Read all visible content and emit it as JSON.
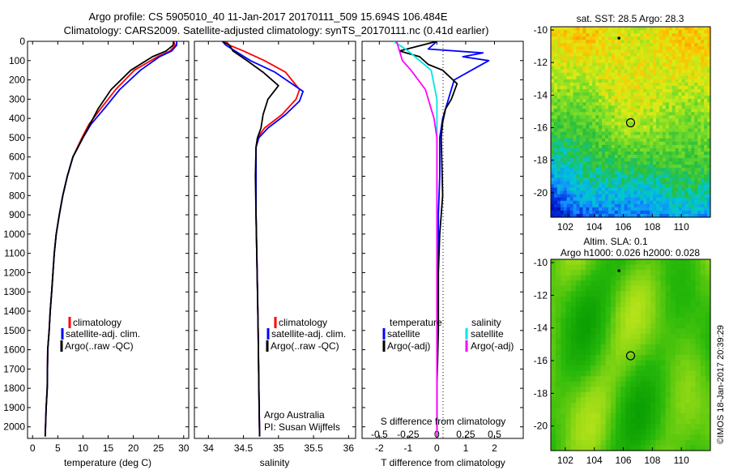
{
  "header": {
    "title_line1": "Argo profile: CS 5905010_40 11-Jan-2017 20170111_509 15.694S 106.484E",
    "title_line2": "Climatology: CARS2009. Satellite-adjusted climatology: synTS_20170111.nc (0.41d earlier)"
  },
  "credits": {
    "argo_line1": "Argo Australia",
    "argo_line2": "PI: Susan Wijffels",
    "stamp": "©IMOS 18-Jan-2017 20:39:29"
  },
  "colors": {
    "climatology": "#ff0000",
    "satellite": "#0000ff",
    "argo": "#000000",
    "salinity_satellite": "#00e5e5",
    "salinity_argo": "#ff00ff"
  },
  "chart_data": [
    {
      "type": "line",
      "id": "temperature",
      "xlabel": "temperature (deg C)",
      "ylabel": "",
      "xlim": [
        -1,
        31
      ],
      "ylim": [
        2060,
        0
      ],
      "xticks": [
        "0",
        "5",
        "10",
        "15",
        "20",
        "25",
        "30"
      ],
      "xtick_values": [
        0,
        5,
        10,
        15,
        20,
        25,
        30
      ],
      "yticks": [
        "0",
        "100",
        "200",
        "300",
        "400",
        "500",
        "600",
        "700",
        "800",
        "900",
        "1000",
        "1100",
        "1200",
        "1300",
        "1400",
        "1500",
        "1600",
        "1700",
        "1800",
        "1900",
        "2000"
      ],
      "ytick_values": [
        0,
        100,
        200,
        300,
        400,
        500,
        600,
        700,
        800,
        900,
        1000,
        1100,
        1200,
        1300,
        1400,
        1500,
        1600,
        1700,
        1800,
        1900,
        2000
      ],
      "legend": [
        "climatology",
        "satellite-adj. clim.",
        "Argo(..raw -QC)"
      ],
      "legend_position": "lower-center",
      "series": [
        {
          "name": "climatology",
          "color": "#ff0000",
          "x": [
            28,
            28.3,
            27.3,
            24.8,
            20.2,
            16.5,
            13.5,
            11.2,
            9.8,
            8.9,
            8.0,
            6.9,
            6.0,
            5.3,
            4.7,
            4.3,
            3.8,
            3.5,
            3.3,
            3.0,
            2.9,
            2.7,
            2.5
          ],
          "y": [
            0,
            20,
            50,
            80,
            150,
            250,
            350,
            430,
            500,
            550,
            600,
            700,
            800,
            900,
            1000,
            1100,
            1300,
            1400,
            1500,
            1600,
            1800,
            1900,
            2050
          ]
        },
        {
          "name": "satellite-adj. clim.",
          "color": "#0000ff",
          "x": [
            28.6,
            28.6,
            27.6,
            25.2,
            21.4,
            17.3,
            14.2,
            11.6,
            10.0,
            9.0,
            8.0,
            6.9,
            6.0,
            5.3,
            4.7,
            4.3,
            3.8,
            3.5,
            3.3,
            3.0,
            2.9,
            2.7,
            2.5
          ],
          "y": [
            0,
            20,
            50,
            80,
            150,
            250,
            350,
            430,
            500,
            550,
            600,
            700,
            800,
            900,
            1000,
            1100,
            1300,
            1400,
            1500,
            1600,
            1800,
            1900,
            2050
          ]
        },
        {
          "name": "Argo(..raw -QC)",
          "color": "#000000",
          "x": [
            28,
            27.9,
            26.5,
            23.8,
            19.5,
            15.6,
            13.0,
            11.4,
            10.0,
            9.0,
            8.0,
            6.9,
            6.0,
            5.3,
            4.7,
            4.3,
            3.8,
            3.5,
            3.3,
            3.0,
            2.9,
            2.7,
            2.5
          ],
          "y": [
            0,
            20,
            50,
            80,
            150,
            250,
            350,
            430,
            500,
            550,
            600,
            700,
            800,
            900,
            1000,
            1100,
            1300,
            1400,
            1500,
            1600,
            1800,
            1900,
            2050
          ]
        }
      ]
    },
    {
      "type": "line",
      "id": "salinity",
      "xlabel": "salinity",
      "ylabel": "",
      "xlim": [
        33.8,
        36.1
      ],
      "ylim": [
        2060,
        0
      ],
      "xticks": [
        "34",
        "34.5",
        "35",
        "35.5",
        "36"
      ],
      "xtick_values": [
        34,
        34.5,
        35,
        35.5,
        36
      ],
      "legend": [
        "climatology",
        "satellite-adj. clim.",
        "Argo(..raw -QC)"
      ],
      "legend_position": "lower-center",
      "series": [
        {
          "name": "climatology",
          "color": "#ff0000",
          "x": [
            34.25,
            34.3,
            34.5,
            34.8,
            35.1,
            35.3,
            35.25,
            35.05,
            34.8,
            34.7,
            34.68,
            34.68,
            34.68,
            34.69,
            34.7,
            34.71,
            34.72,
            34.73
          ],
          "y": [
            0,
            20,
            50,
            100,
            160,
            250,
            300,
            380,
            450,
            500,
            550,
            700,
            900,
            1100,
            1300,
            1500,
            1800,
            2050
          ]
        },
        {
          "name": "satellite-adj. clim.",
          "color": "#0000ff",
          "x": [
            34.2,
            34.25,
            34.38,
            34.6,
            34.95,
            35.35,
            35.3,
            35.1,
            34.85,
            34.72,
            34.68,
            34.68,
            34.68,
            34.69,
            34.7,
            34.71,
            34.72,
            34.73
          ],
          "y": [
            0,
            20,
            50,
            100,
            160,
            260,
            310,
            380,
            450,
            500,
            550,
            700,
            900,
            1100,
            1300,
            1500,
            1800,
            2050
          ]
        },
        {
          "name": "Argo(..raw -QC)",
          "color": "#000000",
          "x": [
            34.2,
            34.3,
            34.35,
            34.55,
            34.78,
            35.0,
            34.85,
            34.78,
            34.75,
            34.7,
            34.68,
            34.67,
            34.68,
            34.69,
            34.7,
            34.71,
            34.72,
            34.73
          ],
          "y": [
            0,
            20,
            50,
            100,
            160,
            230,
            300,
            380,
            450,
            500,
            550,
            700,
            900,
            1100,
            1300,
            1500,
            1800,
            2050
          ]
        }
      ]
    },
    {
      "type": "line",
      "id": "difference",
      "xlabel": "T difference from climatology",
      "top_label": "S difference from climatology",
      "xlim": [
        -2.6,
        3.0
      ],
      "ylim": [
        2060,
        0
      ],
      "xticks": [
        "-2",
        "-1",
        "0",
        "1",
        "2"
      ],
      "xtick_values": [
        -2,
        -1,
        0,
        1,
        2
      ],
      "sticks": [
        "-0.5",
        "-0.25",
        "0",
        "0.25",
        "0.5"
      ],
      "stick_values": [
        -2,
        -1,
        0,
        1,
        2
      ],
      "legend_headers": [
        "temperature",
        "salinity"
      ],
      "legend": [
        "satellite",
        "Argo(-adj)",
        "satellite",
        "Argo(-adj)"
      ],
      "series": [
        {
          "name": "temperature satellite",
          "color": "#0000ff",
          "x": [
            0.0,
            -0.3,
            1.6,
            0.9,
            1.8,
            1.2,
            0.6,
            0.4,
            0.2,
            0.1,
            0.1,
            0.05,
            0.05,
            0.0,
            0.0,
            0.0
          ],
          "y": [
            0,
            40,
            60,
            80,
            100,
            150,
            200,
            300,
            400,
            500,
            700,
            900,
            1100,
            1400,
            1700,
            2050
          ]
        },
        {
          "name": "temperature Argo(-adj)",
          "color": "#000000",
          "x": [
            0.0,
            -1.3,
            -0.6,
            -0.3,
            0.2,
            0.7,
            0.5,
            0.3,
            0.2,
            0.15,
            0.2,
            0.1,
            0.05,
            0.05,
            0.0,
            0.0
          ],
          "y": [
            0,
            50,
            80,
            120,
            150,
            220,
            300,
            350,
            420,
            500,
            800,
            1000,
            1200,
            1500,
            1800,
            2050
          ]
        },
        {
          "name": "salinity satellite",
          "color": "#00e5e5",
          "x": [
            -1.5,
            -1.0,
            -0.6,
            -0.2,
            0.0,
            0.0,
            0.0,
            0.0
          ],
          "y": [
            0,
            50,
            100,
            150,
            300,
            500,
            800,
            2050
          ]
        },
        {
          "name": "salinity Argo(-adj)",
          "color": "#ff00ff",
          "x": [
            -1.4,
            -1.2,
            -0.9,
            -0.4,
            -0.1,
            0.0,
            0.0
          ],
          "y": [
            0,
            100,
            150,
            250,
            400,
            500,
            2050
          ]
        }
      ]
    },
    {
      "type": "heatmap",
      "id": "sst-map",
      "title": "sat. SST: 28.5 Argo: 28.3",
      "xticks": [
        "102",
        "104",
        "106",
        "108",
        "110"
      ],
      "xtick_values": [
        102,
        104,
        106,
        108,
        110
      ],
      "yticks": [
        "-10",
        "-12",
        "-14",
        "-16",
        "-18",
        "-20"
      ],
      "ytick_values": [
        -10,
        -12,
        -14,
        -16,
        -18,
        -20
      ],
      "xlim": [
        101,
        112
      ],
      "ylim": [
        -21.5,
        -9.8
      ],
      "markers": [
        {
          "label": "current",
          "x": 106.5,
          "y": -15.7
        },
        {
          "label": "previous",
          "x": 105.7,
          "y": -10.5
        }
      ]
    },
    {
      "type": "heatmap",
      "id": "sla-map",
      "title": "Altim. SLA: 0.1",
      "subtitle": "Argo h1000: 0.026 h2000: 0.028",
      "xticks": [
        "102",
        "104",
        "106",
        "108",
        "110"
      ],
      "xtick_values": [
        102,
        104,
        106,
        108,
        110
      ],
      "yticks": [
        "-10",
        "-12",
        "-14",
        "-16",
        "-18",
        "-20"
      ],
      "ytick_values": [
        -10,
        -12,
        -14,
        -16,
        -18,
        -20
      ],
      "xlim": [
        101,
        112
      ],
      "ylim": [
        -21.5,
        -9.8
      ],
      "markers": [
        {
          "label": "current",
          "x": 106.5,
          "y": -15.7
        },
        {
          "label": "previous",
          "x": 105.7,
          "y": -10.5
        }
      ]
    }
  ]
}
